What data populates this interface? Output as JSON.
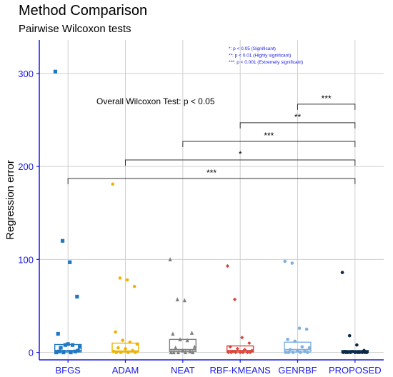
{
  "chart_data": {
    "type": "box",
    "title": "Method Comparison",
    "subtitle": "Pairwise Wilcoxon tests",
    "ylabel": "Regression error",
    "xlabel": "",
    "ylim": [
      -8,
      336
    ],
    "yticks": [
      0,
      100,
      200,
      300
    ],
    "grid": true,
    "annotation": "Overall Wilcoxon Test: p < 0.05",
    "legend": [
      "*: p < 0.05 (Significant)",
      "**: p < 0.01 (Highly significant)",
      "***: p < 0.001 (Extremely significant)"
    ],
    "categories": [
      "BFGS",
      "ADAM",
      "NEAT",
      "RBF-KMEANS",
      "GENRBF",
      "PROPOSED"
    ],
    "boxes": [
      {
        "name": "BFGS",
        "color": "#1f78c1",
        "q1": 0.5,
        "median": 2,
        "q3": 8.5,
        "marker": "square",
        "points": [
          302,
          120,
          97,
          60,
          20,
          8,
          8,
          6,
          5,
          9,
          1,
          0,
          0,
          0,
          2,
          1
        ]
      },
      {
        "name": "ADAM",
        "color": "#f0b400",
        "q1": 0.5,
        "median": 1.5,
        "q3": 10,
        "marker": "circle",
        "points": [
          181,
          80,
          78,
          71,
          22,
          13,
          11,
          9,
          5,
          4,
          2,
          1,
          0,
          0,
          0,
          0
        ]
      },
      {
        "name": "NEAT",
        "color": "#7f7f7f",
        "q1": 1,
        "median": 3,
        "q3": 14,
        "marker": "triangle",
        "points": [
          100,
          57,
          56,
          21,
          20,
          14,
          13,
          6,
          5,
          2,
          1,
          0,
          0,
          0,
          0,
          0
        ]
      },
      {
        "name": "RBF-KMEANS",
        "color": "#d9453b",
        "q1": 0.5,
        "median": 2,
        "q3": 7,
        "marker": "diamond",
        "points": [
          93,
          57,
          16,
          10,
          6,
          4,
          3,
          2,
          1,
          0,
          0,
          0,
          0,
          0,
          0,
          0
        ]
      },
      {
        "name": "GENRBF",
        "color": "#7fb0e0",
        "q1": 0.5,
        "median": 3,
        "q3": 11,
        "marker": "circle",
        "points": [
          98,
          96,
          26,
          25,
          14,
          12,
          6,
          5,
          3,
          2,
          1,
          0,
          0,
          0,
          0,
          0
        ]
      },
      {
        "name": "PROPOSED",
        "color": "#0b2a4a",
        "q1": 0,
        "median": 0.5,
        "q3": 2,
        "marker": "circle",
        "points": [
          86,
          18,
          8,
          2,
          1,
          1,
          0,
          0,
          0,
          0,
          0,
          0,
          0,
          0,
          0,
          0
        ]
      }
    ],
    "comparisons": [
      {
        "from": "BFGS",
        "to": "PROPOSED",
        "y": 187,
        "label": "***"
      },
      {
        "from": "ADAM",
        "to": "PROPOSED",
        "y": 207,
        "label": "*"
      },
      {
        "from": "NEAT",
        "to": "PROPOSED",
        "y": 227,
        "label": "***"
      },
      {
        "from": "RBF-KMEANS",
        "to": "PROPOSED",
        "y": 247,
        "label": "**"
      },
      {
        "from": "GENRBF",
        "to": "PROPOSED",
        "y": 267,
        "label": "***"
      }
    ]
  }
}
